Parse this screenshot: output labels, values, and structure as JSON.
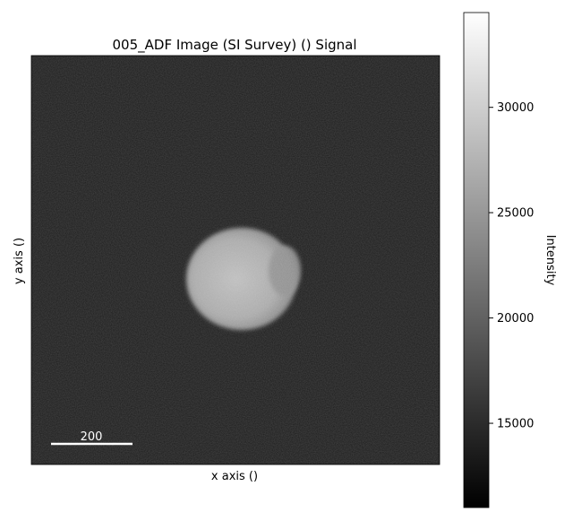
{
  "chart_data": {
    "type": "heatmap",
    "title": "005_ADF Image (SI Survey) () Signal",
    "xlabel": "x axis ()",
    "ylabel": "y axis ()",
    "colormap": "gray",
    "grid": false,
    "colorbar": {
      "label": "Intensity",
      "range": [
        11000,
        34500
      ],
      "ticks": [
        15000,
        20000,
        25000,
        30000
      ],
      "tick_labels": [
        "15000",
        "20000",
        "25000",
        "30000"
      ]
    },
    "scalebar": {
      "label": "200",
      "color": "#ffffff"
    },
    "image": {
      "background_intensity": 13000,
      "particle_intensity": 26500,
      "particle_shape": "roughly circular bright particle near image center",
      "particle_center_fraction": [
        0.52,
        0.54
      ],
      "particle_radius_fraction": 0.13
    }
  }
}
